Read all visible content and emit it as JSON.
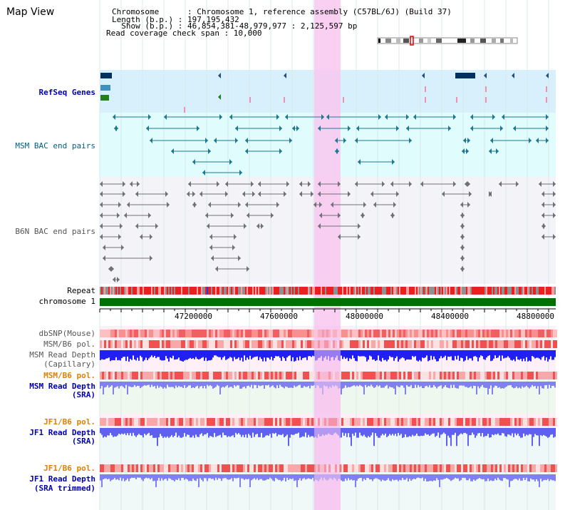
{
  "title": "Map View",
  "info": {
    "chromosome": "Chromosome      : Chromosome 1, reference assembly (C57BL/6J) (Build 37)",
    "length": "Length (b.p.) : 197,195,432",
    "show": "  Show (b.p.) : 46,854,381-48,979,977 : 2,125,597 bp",
    "coverage": "Read coverage check span : 10,000"
  },
  "tracks": {
    "refseq": "RefSeq Genes",
    "msm_bac": "MSM BAC end pairs",
    "b6n_bac": "B6N BAC end pairs",
    "repeat": "Repeat",
    "chromosome": "chromosome 1",
    "dbsnp": "dbSNP(Mouse)",
    "msm_b6_pol_1": "MSM/B6 pol.",
    "msm_depth_cap_1": "MSM Read Depth",
    "msm_depth_cap_2": "(Capillary)",
    "msm_b6_pol_2": "MSM/B6 pol.",
    "msm_depth_sra_1": "MSM Read Depth",
    "msm_depth_sra_2": "(SRA)",
    "jf1_b6_pol_1": "JF1/B6 pol.",
    "jf1_depth_sra_1": "JF1 Read Depth",
    "jf1_depth_sra_2": "(SRA)",
    "jf1_b6_pol_2": "JF1/B6 pol.",
    "jf1_depth_trim_1": "JF1 Read Depth",
    "jf1_depth_trim_2": "(SRA trimmed)"
  },
  "axis": {
    "ticks": [
      "47200000",
      "47600000",
      "48000000",
      "48400000",
      "48800000"
    ]
  },
  "colors": {
    "highlight": "#f8c8f0",
    "refseq_bg": "#d8f0fc",
    "msm_bg": "#e0fcfc",
    "b6n_bg": "#f4f4f8",
    "msm_feature": "#207890",
    "b6n_feature": "#707078",
    "chromosome": "#007000",
    "depth_blue": "#2020f0",
    "depth_light": "#8080f0"
  }
}
